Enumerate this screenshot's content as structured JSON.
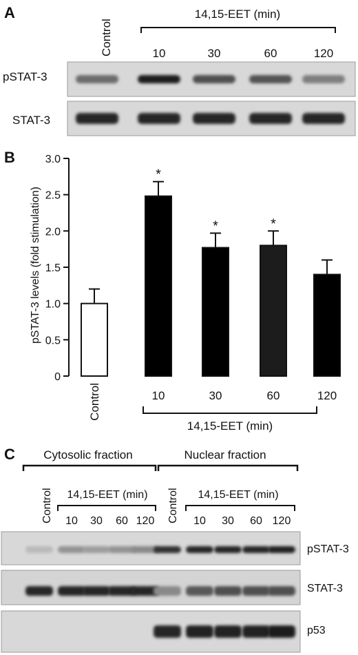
{
  "panel_a": {
    "letter": "A",
    "control_label": "Control",
    "treatment_label": "14,15-EET (min)",
    "times": [
      "10",
      "30",
      "60",
      "120"
    ],
    "rows": [
      "pSTAT-3",
      "STAT-3"
    ],
    "band_intensity": {
      "pSTAT-3": [
        0.55,
        0.95,
        0.7,
        0.68,
        0.45
      ],
      "STAT-3": [
        0.9,
        0.9,
        0.9,
        0.9,
        0.9
      ]
    }
  },
  "panel_b": {
    "letter": "B",
    "chart_data": {
      "type": "bar",
      "categories": [
        "Control",
        "10",
        "30",
        "60",
        "120"
      ],
      "values": [
        1.0,
        2.48,
        1.77,
        1.8,
        1.4
      ],
      "errors": [
        0.2,
        0.2,
        0.2,
        0.2,
        0.2
      ],
      "significant": [
        false,
        true,
        true,
        true,
        false
      ],
      "significance_mark": "*",
      "bar_colors": [
        "#ffffff",
        "#000000",
        "#000000",
        "#1c1c1c",
        "#000000"
      ],
      "ylabel": "pSTAT-3 levels (fold stimulation)",
      "xlabel": "14,15-EET (min)",
      "ylim": [
        0,
        3.0
      ],
      "yticks": [
        "0",
        "0.5",
        "1.0",
        "1.5",
        "2.0",
        "2.5",
        "3.0"
      ],
      "ytick_values": [
        0,
        0.5,
        1.0,
        1.5,
        2.0,
        2.5,
        3.0
      ]
    }
  },
  "panel_c": {
    "letter": "C",
    "cytosolic_label": "Cytosolic fraction",
    "nuclear_label": "Nuclear fraction",
    "control_label": "Control",
    "treatment_label": "14,15-EET (min)",
    "times": [
      "10",
      "30",
      "60",
      "120"
    ],
    "rows": [
      "pSTAT-3",
      "STAT-3",
      "p53"
    ],
    "band_intensity": {
      "pSTAT-3": [
        0.15,
        0.35,
        0.3,
        0.35,
        0.4,
        0.85,
        0.9,
        0.9,
        0.9,
        0.92
      ],
      "STAT-3": [
        0.9,
        0.9,
        0.9,
        0.9,
        0.9,
        0.4,
        0.65,
        0.7,
        0.7,
        0.7
      ],
      "p53": [
        0.0,
        0.0,
        0.0,
        0.0,
        0.0,
        0.9,
        0.92,
        0.92,
        0.92,
        0.95
      ]
    }
  }
}
